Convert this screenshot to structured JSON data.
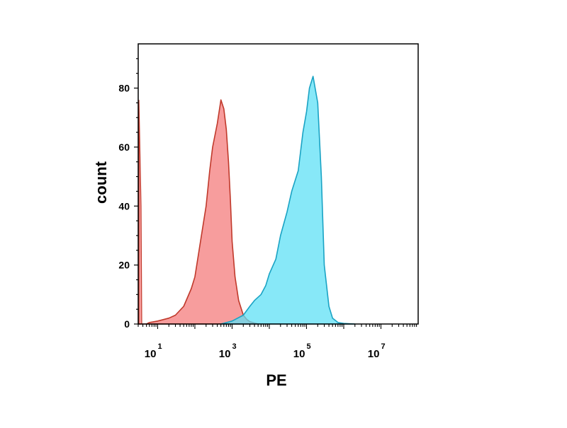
{
  "chart_data": {
    "type": "area",
    "title": "",
    "xlabel": "PE",
    "ylabel": "count",
    "x_scale": "log",
    "xlim": [
      3,
      100000000.0
    ],
    "ylim": [
      0,
      95
    ],
    "grid": false,
    "legend": "none",
    "x_ticks": [
      {
        "base": "10",
        "exp": "1",
        "value": 10
      },
      {
        "base": "10",
        "exp": "3",
        "value": 1000
      },
      {
        "base": "10",
        "exp": "5",
        "value": 100000
      },
      {
        "base": "10",
        "exp": "7",
        "value": 10000000
      }
    ],
    "y_ticks": [
      {
        "label": "0",
        "value": 0
      },
      {
        "label": "20",
        "value": 20
      },
      {
        "label": "40",
        "value": 40
      },
      {
        "label": "60",
        "value": 60
      },
      {
        "label": "80",
        "value": 80
      }
    ],
    "series": [
      {
        "color": "#f47c7c",
        "stroke": "#c0392b",
        "x": [
          3,
          4,
          5,
          6,
          10,
          20,
          30,
          50,
          80,
          100,
          150,
          200,
          250,
          300,
          400,
          500,
          600,
          700,
          800,
          900,
          1000,
          1200,
          1500,
          2000,
          2500,
          3000,
          4000,
          5000
        ],
        "y": [
          0,
          0,
          0,
          0.5,
          1,
          2,
          3,
          6,
          12,
          16,
          30,
          40,
          52,
          60,
          68,
          76,
          73,
          66,
          55,
          42,
          28,
          16,
          8,
          3,
          1.5,
          0.8,
          0.3,
          0
        ]
      },
      {
        "color": "#5fe0f5",
        "stroke": "#1aa3c4",
        "x": [
          500,
          1000,
          2000,
          3000,
          4000,
          6000,
          8000,
          10000,
          15000,
          20000,
          30000,
          40000,
          60000,
          80000,
          100000,
          120000,
          150000,
          200000,
          250000,
          300000,
          400000,
          500000,
          700000,
          1000000,
          2000000
        ],
        "y": [
          0,
          1,
          3,
          6,
          8,
          10,
          13,
          17,
          22,
          30,
          38,
          45,
          52,
          65,
          72,
          80,
          84,
          75,
          50,
          20,
          6,
          2,
          0.5,
          0.2,
          0
        ]
      }
    ]
  }
}
